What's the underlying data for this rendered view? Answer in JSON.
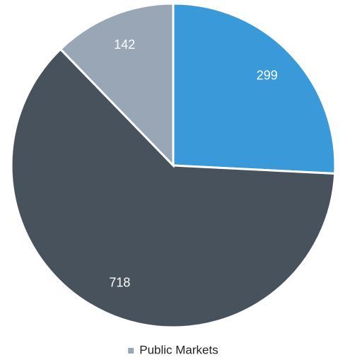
{
  "chart_data": {
    "type": "pie",
    "categories": [
      null,
      null,
      "Public Markets"
    ],
    "values": [
      299,
      718,
      142
    ],
    "colors": [
      "#3a9ad9",
      "#48525c",
      "#98a6b6"
    ],
    "legend": "bottom"
  }
}
